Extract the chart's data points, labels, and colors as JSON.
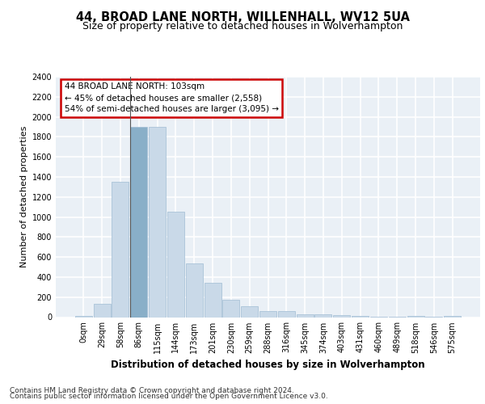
{
  "title": "44, BROAD LANE NORTH, WILLENHALL, WV12 5UA",
  "subtitle": "Size of property relative to detached houses in Wolverhampton",
  "xlabel": "Distribution of detached houses by size in Wolverhampton",
  "ylabel": "Number of detached properties",
  "footnote1": "Contains HM Land Registry data © Crown copyright and database right 2024.",
  "footnote2": "Contains public sector information licensed under the Open Government Licence v3.0.",
  "bar_labels": [
    "0sqm",
    "29sqm",
    "58sqm",
    "86sqm",
    "115sqm",
    "144sqm",
    "173sqm",
    "201sqm",
    "230sqm",
    "259sqm",
    "288sqm",
    "316sqm",
    "345sqm",
    "374sqm",
    "403sqm",
    "431sqm",
    "460sqm",
    "489sqm",
    "518sqm",
    "546sqm",
    "575sqm"
  ],
  "bar_values": [
    15,
    130,
    1350,
    1900,
    1900,
    1050,
    540,
    340,
    170,
    105,
    60,
    60,
    30,
    25,
    20,
    10,
    5,
    5,
    13,
    5,
    13
  ],
  "bar_color": "#c9d9e8",
  "bar_edge_color": "#a0bcd4",
  "highlight_bar_index": 3,
  "highlight_bar_color": "#89afc8",
  "annotation_title": "44 BROAD LANE NORTH: 103sqm",
  "annotation_line1": "← 45% of detached houses are smaller (2,558)",
  "annotation_line2": "54% of semi-detached houses are larger (3,095) →",
  "annotation_box_color": "#cc0000",
  "vline_bar_index": 3,
  "ylim": [
    0,
    2400
  ],
  "yticks": [
    0,
    200,
    400,
    600,
    800,
    1000,
    1200,
    1400,
    1600,
    1800,
    2000,
    2200,
    2400
  ],
  "bg_color": "#eaf0f6",
  "grid_color": "#ffffff",
  "title_fontsize": 10.5,
  "subtitle_fontsize": 9,
  "ylabel_fontsize": 8,
  "xlabel_fontsize": 8.5,
  "tick_fontsize": 7,
  "annotation_fontsize": 7.5,
  "footnote_fontsize": 6.5
}
